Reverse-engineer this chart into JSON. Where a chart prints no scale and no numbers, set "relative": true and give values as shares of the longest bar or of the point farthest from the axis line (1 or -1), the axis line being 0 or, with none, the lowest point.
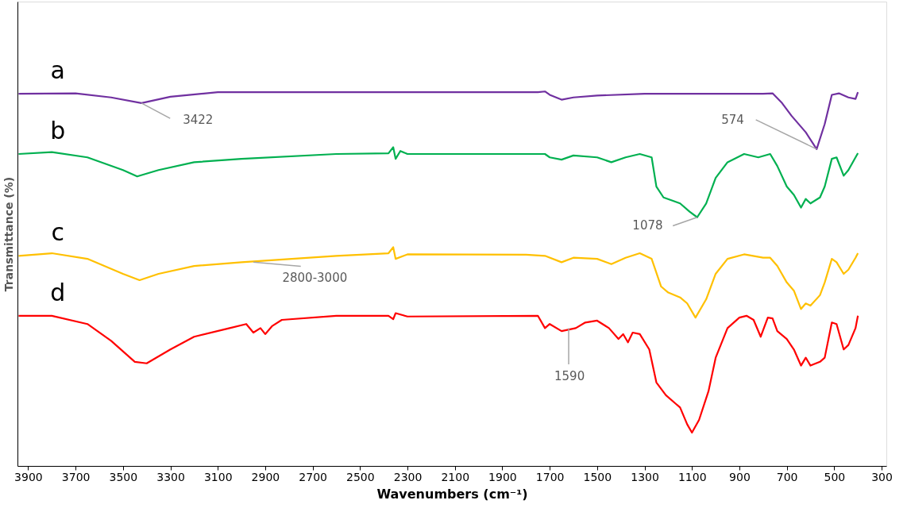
{
  "chart_data": {
    "type": "line",
    "relative": true,
    "xlabel": "Wavenumbers (cm⁻¹)",
    "ylabel": "Transmittance (%)",
    "xlim": [
      3945,
      280
    ],
    "xticks": [
      3900,
      3700,
      3500,
      3300,
      3100,
      2900,
      2700,
      2500,
      2300,
      2100,
      1900,
      1700,
      1500,
      1300,
      1100,
      900,
      700,
      500,
      300
    ],
    "tick_labels": "x",
    "grid": false,
    "legend": false,
    "marker": "none",
    "line_style": "solid",
    "series": [
      {
        "name": "a",
        "color": "#7030a0",
        "x": [
          3940,
          3700,
          3550,
          3422,
          3300,
          3100,
          2500,
          1900,
          1750,
          1720,
          1700,
          1650,
          1600,
          1500,
          1300,
          1000,
          800,
          760,
          720,
          680,
          620,
          574,
          540,
          510,
          480,
          440,
          410,
          400
        ],
        "values": [
          0.994,
          0.995,
          0.984,
          0.969,
          0.986,
          0.998,
          0.998,
          0.998,
          0.998,
          1.0,
          0.991,
          0.978,
          0.984,
          0.989,
          0.994,
          0.994,
          0.994,
          0.995,
          0.969,
          0.935,
          0.891,
          0.846,
          0.913,
          0.991,
          0.995,
          0.984,
          0.98,
          0.998
        ]
      },
      {
        "name": "b",
        "color": "#00b050",
        "x": [
          3940,
          3800,
          3650,
          3500,
          3440,
          3350,
          3200,
          3000,
          2600,
          2380,
          2360,
          2350,
          2330,
          2300,
          1800,
          1720,
          1700,
          1650,
          1600,
          1500,
          1440,
          1380,
          1320,
          1270,
          1250,
          1220,
          1180,
          1150,
          1110,
          1078,
          1040,
          1000,
          950,
          880,
          820,
          770,
          740,
          700,
          670,
          640,
          620,
          600,
          560,
          540,
          510,
          490,
          460,
          440,
          410,
          400
        ],
        "values": [
          0.833,
          0.838,
          0.824,
          0.79,
          0.773,
          0.79,
          0.811,
          0.82,
          0.833,
          0.835,
          0.851,
          0.82,
          0.841,
          0.833,
          0.833,
          0.833,
          0.824,
          0.818,
          0.829,
          0.824,
          0.811,
          0.824,
          0.833,
          0.824,
          0.746,
          0.717,
          0.708,
          0.701,
          0.679,
          0.664,
          0.701,
          0.769,
          0.811,
          0.833,
          0.824,
          0.833,
          0.801,
          0.746,
          0.724,
          0.69,
          0.713,
          0.701,
          0.717,
          0.746,
          0.82,
          0.824,
          0.775,
          0.79,
          0.824,
          0.835
        ]
      },
      {
        "name": "c",
        "color": "#ffc000",
        "x": [
          3940,
          3800,
          3650,
          3500,
          3430,
          3350,
          3200,
          3000,
          2600,
          2380,
          2360,
          2350,
          2300,
          1800,
          1720,
          1650,
          1600,
          1500,
          1440,
          1380,
          1320,
          1270,
          1230,
          1200,
          1150,
          1120,
          1085,
          1040,
          1000,
          950,
          880,
          800,
          770,
          740,
          700,
          670,
          640,
          620,
          600,
          560,
          540,
          510,
          490,
          460,
          440,
          410,
          400
        ],
        "values": [
          0.561,
          0.568,
          0.553,
          0.513,
          0.496,
          0.513,
          0.534,
          0.544,
          0.561,
          0.568,
          0.584,
          0.553,
          0.565,
          0.564,
          0.561,
          0.544,
          0.556,
          0.553,
          0.539,
          0.556,
          0.568,
          0.553,
          0.479,
          0.463,
          0.45,
          0.434,
          0.396,
          0.445,
          0.513,
          0.553,
          0.565,
          0.556,
          0.556,
          0.534,
          0.49,
          0.468,
          0.419,
          0.434,
          0.428,
          0.456,
          0.49,
          0.553,
          0.544,
          0.513,
          0.524,
          0.556,
          0.568
        ]
      },
      {
        "name": "d",
        "color": "#ff0000",
        "x": [
          3940,
          3800,
          3650,
          3550,
          3450,
          3400,
          3300,
          3200,
          3050,
          2980,
          2950,
          2920,
          2900,
          2870,
          2830,
          2600,
          2380,
          2360,
          2350,
          2300,
          1750,
          1720,
          1700,
          1650,
          1590,
          1550,
          1500,
          1450,
          1410,
          1390,
          1370,
          1350,
          1320,
          1280,
          1250,
          1210,
          1170,
          1150,
          1120,
          1100,
          1070,
          1030,
          1000,
          950,
          900,
          870,
          840,
          810,
          780,
          760,
          740,
          700,
          670,
          640,
          620,
          600,
          560,
          540,
          510,
          490,
          460,
          440,
          410,
          400
        ],
        "values": [
          0.401,
          0.401,
          0.379,
          0.334,
          0.278,
          0.274,
          0.311,
          0.345,
          0.368,
          0.379,
          0.356,
          0.368,
          0.352,
          0.374,
          0.39,
          0.401,
          0.401,
          0.392,
          0.408,
          0.399,
          0.401,
          0.368,
          0.379,
          0.36,
          0.368,
          0.383,
          0.388,
          0.368,
          0.339,
          0.352,
          0.33,
          0.356,
          0.352,
          0.311,
          0.223,
          0.189,
          0.167,
          0.156,
          0.111,
          0.089,
          0.123,
          0.2,
          0.289,
          0.368,
          0.396,
          0.401,
          0.39,
          0.345,
          0.396,
          0.394,
          0.36,
          0.339,
          0.311,
          0.268,
          0.289,
          0.268,
          0.278,
          0.289,
          0.383,
          0.379,
          0.311,
          0.323,
          0.368,
          0.401
        ]
      }
    ],
    "annotations": [
      {
        "text": "3422",
        "x": 3422,
        "y": 0.969
      },
      {
        "text": "574",
        "x": 574,
        "y": 0.846
      },
      {
        "text": "1078",
        "x": 1078,
        "y": 0.664
      },
      {
        "text": "2800-3000",
        "x": 2950,
        "y": 0.544
      },
      {
        "text": "1590",
        "x": 1620,
        "y": 0.368
      }
    ]
  }
}
